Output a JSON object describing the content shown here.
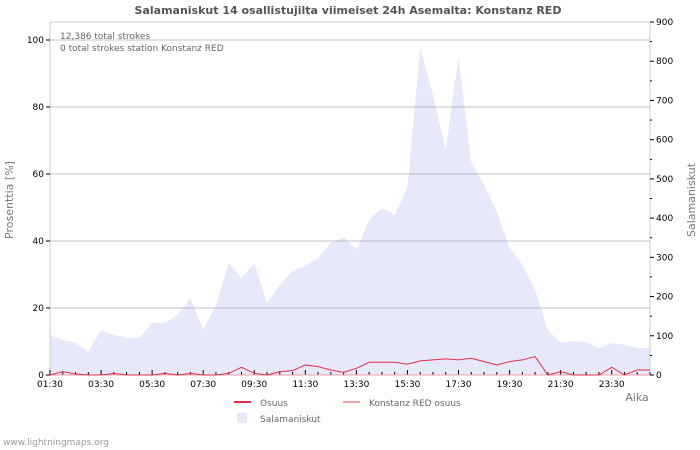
{
  "chart_data": {
    "type": "area+line",
    "title": "Salamaniskut 14 osallistujilta viimeiset 24h Asemalta: Konstanz RED",
    "info_lines": [
      "12,386 total strokes",
      "0 total strokes station Konstanz RED"
    ],
    "xlabel": "Aika",
    "ylabel_left": "Prosenttia   [%]",
    "ylabel_right": "Salamaniskut",
    "ylim_left": [
      0,
      100
    ],
    "ylim_right": [
      0,
      900
    ],
    "yticks_left": [
      "0",
      "20",
      "40",
      "60",
      "80",
      "100"
    ],
    "yticks_right": [
      "0",
      "100",
      "200",
      "300",
      "400",
      "500",
      "600",
      "700",
      "800",
      "900"
    ],
    "xtick_labels": [
      "01:30",
      "03:30",
      "05:30",
      "07:30",
      "09:30",
      "11:30",
      "13:30",
      "15:30",
      "17:30",
      "19:30",
      "21:30",
      "23:30"
    ],
    "interval_minutes": 30,
    "grid": true,
    "legend_placement": "bottom",
    "series": [
      {
        "name": "Salamaniskut",
        "axis": "right",
        "type": "area",
        "color": "#e8e8fb",
        "values": [
          102,
          90,
          82,
          60,
          115,
          102,
          95,
          95,
          133,
          133,
          153,
          196,
          115,
          178,
          285,
          247,
          285,
          184,
          230,
          265,
          278,
          298,
          337,
          352,
          320,
          395,
          426,
          408,
          480,
          834,
          714,
          574,
          811,
          543,
          485,
          416,
          324,
          281,
          217,
          115,
          82,
          87,
          84,
          69,
          82,
          77,
          69,
          69
        ]
      },
      {
        "name": "Osuus",
        "axis": "left",
        "type": "line",
        "color": "#e0304a",
        "values": [
          0,
          1,
          0.3,
          0,
          0,
          0.5,
          0,
          0,
          0,
          0.5,
          0,
          0.5,
          0,
          0,
          0.5,
          2.3,
          0.5,
          0,
          1,
          1.3,
          3,
          2.5,
          1.5,
          0.8,
          2,
          3.8,
          3.8,
          3.8,
          3.2,
          4.2,
          4.5,
          4.8,
          4.5,
          5,
          4,
          3,
          4,
          4.5,
          5.5,
          0,
          1,
          0,
          0,
          0,
          2.3,
          0,
          1.5,
          1.5
        ]
      },
      {
        "name": "Konstanz RED osuus",
        "axis": "left",
        "type": "line",
        "color": "#f4a0a8",
        "values": [
          0,
          0,
          0,
          0,
          0,
          0,
          0,
          0,
          0,
          0,
          0,
          0,
          0,
          0,
          0,
          0,
          0,
          0,
          0,
          0,
          0,
          0,
          0,
          0,
          0,
          0,
          0,
          0,
          0,
          0,
          0,
          0,
          0,
          0,
          0,
          0,
          0,
          0,
          0,
          0,
          0,
          0,
          0,
          0,
          0,
          0,
          0,
          0
        ]
      }
    ]
  },
  "footer": "www.lightningmaps.org"
}
